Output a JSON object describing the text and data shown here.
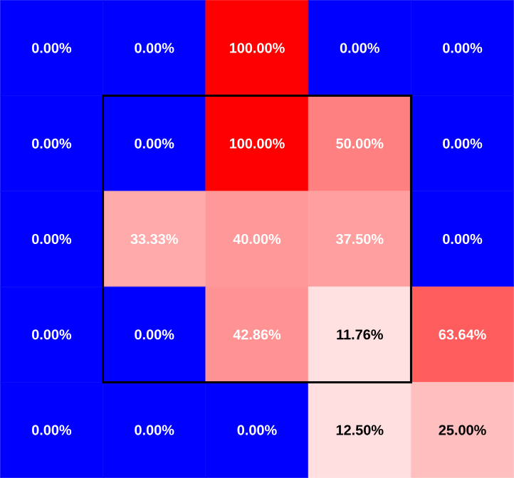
{
  "chart_data": {
    "type": "heatmap",
    "categories": [
      null,
      null,
      null,
      null,
      null
    ],
    "y_categories": [
      null,
      null,
      null,
      null,
      null
    ],
    "cells": [
      [
        0,
        0,
        100,
        0,
        0
      ],
      [
        0,
        0,
        100,
        50,
        0
      ],
      [
        0,
        33.33,
        40,
        37.5,
        0
      ],
      [
        0,
        0,
        42.86,
        11.76,
        63.64
      ],
      [
        0,
        0,
        0,
        12.5,
        25
      ]
    ],
    "cell_labels": [
      [
        "0.00%",
        "0.00%",
        "100.00%",
        "0.00%",
        "0.00%"
      ],
      [
        "0.00%",
        "0.00%",
        "100.00%",
        "50.00%",
        "0.00%"
      ],
      [
        "0.00%",
        "33.33%",
        "40.00%",
        "37.50%",
        "0.00%"
      ],
      [
        "0.00%",
        "0.00%",
        "42.86%",
        "11.76%",
        "63.64%"
      ],
      [
        "0.00%",
        "0.00%",
        "0.00%",
        "12.50%",
        "25.00%"
      ]
    ]
  }
}
